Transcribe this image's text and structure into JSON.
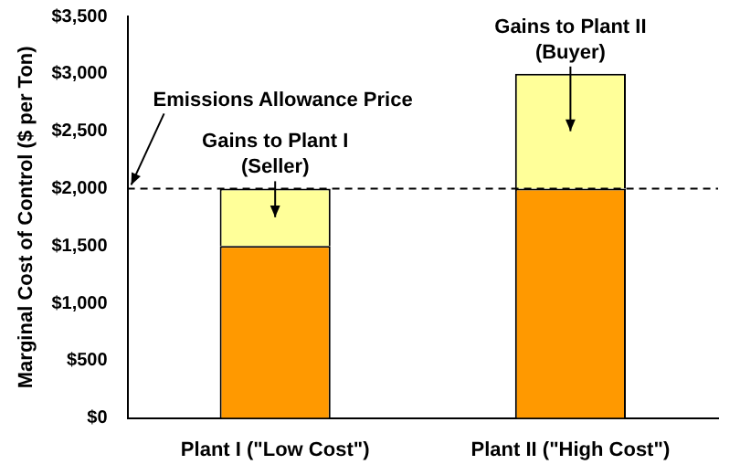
{
  "chart_data": {
    "type": "bar",
    "stacked": true,
    "ylabel": "Marginal Cost of Control ($ per Ton)",
    "categories": [
      "Plant I (\"Low Cost\")",
      "Plant II (\"High Cost\")"
    ],
    "series": [
      {
        "color": "#ff9900",
        "values": [
          1500,
          2000
        ]
      },
      {
        "color": "#ffff99",
        "values": [
          500,
          1000
        ]
      }
    ],
    "ylim": [
      0,
      3500
    ],
    "yticks": [
      {
        "value": 0,
        "label": "$0"
      },
      {
        "value": 500,
        "label": "$500"
      },
      {
        "value": 1000,
        "label": "$1,000"
      },
      {
        "value": 1500,
        "label": "$1,500"
      },
      {
        "value": 2000,
        "label": "$2,000"
      },
      {
        "value": 2500,
        "label": "$2,500"
      },
      {
        "value": 3000,
        "label": "$3,000"
      },
      {
        "value": 3500,
        "label": "$3,500"
      }
    ],
    "grid": false,
    "legend": false,
    "ref_lines": [
      {
        "axis": "y",
        "value": 2000,
        "label": "Emissions Allowance Price",
        "line_style": "dashed",
        "color": "#000000"
      }
    ],
    "annotations": [
      "Gains to Plant I (Seller)",
      "Gains to Plant II (Buyer)"
    ]
  }
}
